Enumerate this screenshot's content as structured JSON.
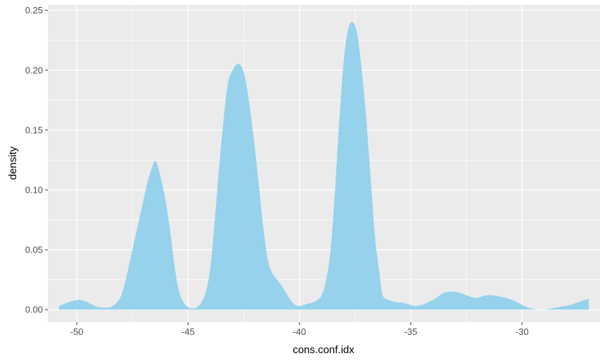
{
  "chart_data": {
    "type": "area",
    "xlabel": "cons.conf.idx",
    "ylabel": "density",
    "xlim": [
      -51.3,
      -26.5
    ],
    "ylim": [
      -0.0105,
      0.2545
    ],
    "x_ticks": [
      -50,
      -45,
      -40,
      -35,
      -30
    ],
    "x_tick_labels": [
      "-50",
      "-45",
      "-40",
      "-35",
      "-30"
    ],
    "y_ticks": [
      0.0,
      0.05,
      0.1,
      0.15,
      0.2,
      0.25
    ],
    "y_tick_labels": [
      "0.00",
      "0.05",
      "0.10",
      "0.15",
      "0.20",
      "0.25"
    ],
    "grid": true,
    "fill_color": "#87CEEB",
    "panel_color": "#EBEBEB",
    "grid_color": "#FFFFFF",
    "series": [
      {
        "x": [
          -50.8,
          -50.4,
          -50.0,
          -49.8,
          -49.5,
          -49.0,
          -48.5,
          -48.2,
          -48.0,
          -47.8,
          -47.5,
          -47.2,
          -47.0,
          -46.8,
          -46.6,
          -46.5,
          -46.4,
          -46.3,
          -46.2,
          -46.0,
          -45.8,
          -45.6,
          -45.4,
          -45.2,
          -45.0,
          -44.8,
          -44.6,
          -44.4,
          -44.2,
          -44.0,
          -43.8,
          -43.6,
          -43.4,
          -43.2,
          -43.0,
          -42.8,
          -42.6,
          -42.4,
          -42.2,
          -42.1,
          -42.0,
          -41.8,
          -41.6,
          -41.4,
          -41.2,
          -41.0,
          -40.8,
          -40.6,
          -40.4,
          -40.2,
          -40.0,
          -39.8,
          -39.6,
          -39.4,
          -39.2,
          -39.0,
          -38.8,
          -38.6,
          -38.4,
          -38.2,
          -38.0,
          -37.8,
          -37.6,
          -37.4,
          -37.2,
          -37.0,
          -36.8,
          -36.6,
          -36.4,
          -36.3,
          -36.2,
          -36.0,
          -35.8,
          -35.6,
          -35.4,
          -35.2,
          -35.0,
          -34.8,
          -34.5,
          -34.0,
          -33.5,
          -33.0,
          -32.5,
          -32.2,
          -32.0,
          -31.6,
          -31.3,
          -31.0,
          -30.6,
          -30.2,
          -29.9,
          -29.6,
          -29.3,
          -29.0,
          -28.7,
          -28.4,
          -28.1,
          -27.8,
          -27.5,
          -27.2,
          -27.0
        ],
        "values": [
          0.003,
          0.006,
          0.008,
          0.008,
          0.006,
          0.002,
          0.002,
          0.006,
          0.012,
          0.025,
          0.05,
          0.075,
          0.092,
          0.108,
          0.12,
          0.124,
          0.122,
          0.116,
          0.108,
          0.09,
          0.065,
          0.035,
          0.015,
          0.006,
          0.002,
          0.001,
          0.002,
          0.006,
          0.015,
          0.035,
          0.075,
          0.12,
          0.16,
          0.19,
          0.2,
          0.205,
          0.203,
          0.19,
          0.165,
          0.15,
          0.135,
          0.1,
          0.065,
          0.04,
          0.03,
          0.025,
          0.02,
          0.014,
          0.008,
          0.004,
          0.003,
          0.004,
          0.005,
          0.006,
          0.008,
          0.012,
          0.025,
          0.05,
          0.1,
          0.16,
          0.21,
          0.235,
          0.24,
          0.23,
          0.2,
          0.16,
          0.11,
          0.06,
          0.03,
          0.015,
          0.01,
          0.008,
          0.007,
          0.006,
          0.006,
          0.005,
          0.004,
          0.003,
          0.004,
          0.008,
          0.014,
          0.015,
          0.012,
          0.01,
          0.01,
          0.012,
          0.012,
          0.011,
          0.009,
          0.006,
          0.003,
          0.001,
          0.0,
          0.0,
          0.001,
          0.002,
          0.003,
          0.004,
          0.006,
          0.008,
          0.009
        ]
      }
    ]
  }
}
